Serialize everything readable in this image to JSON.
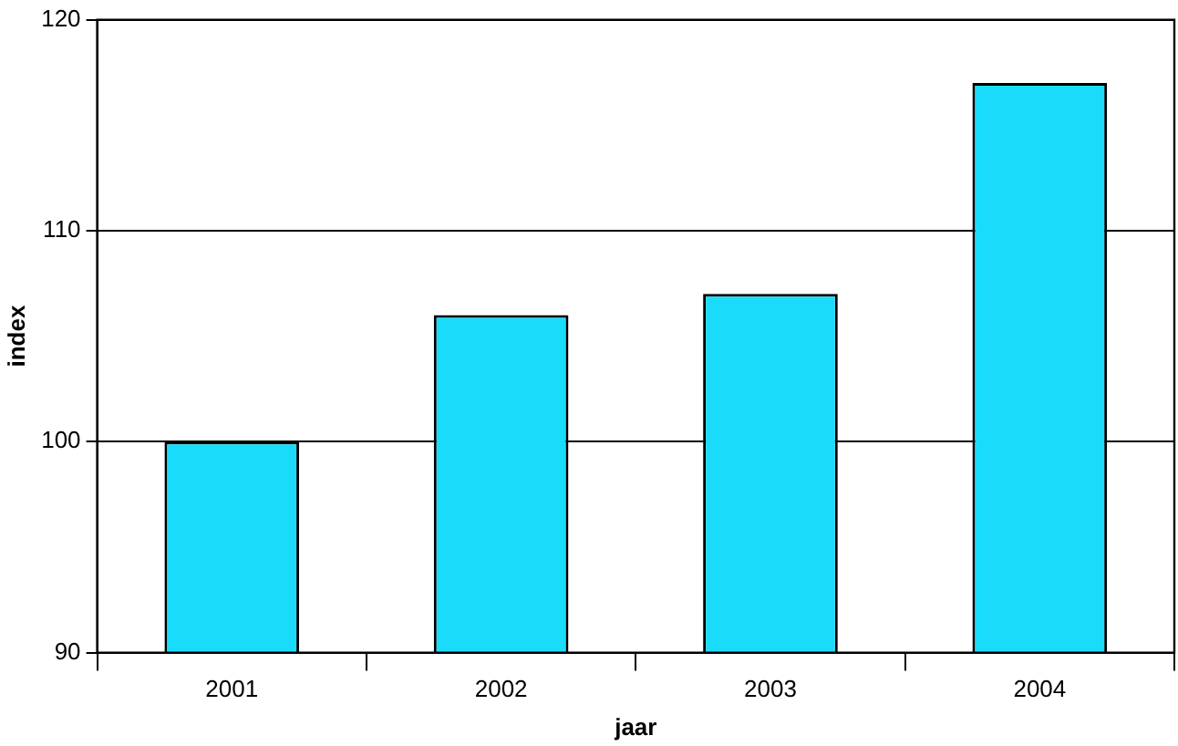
{
  "chart_data": {
    "type": "bar",
    "xlabel": "jaar",
    "ylabel": "index",
    "categories": [
      "2001",
      "2002",
      "2003",
      "2004"
    ],
    "values": [
      100,
      106,
      107,
      117
    ],
    "color": "#1adcfa",
    "ylim": [
      90,
      120
    ],
    "yticks": [
      90,
      100,
      110,
      120
    ],
    "grid": "y"
  }
}
